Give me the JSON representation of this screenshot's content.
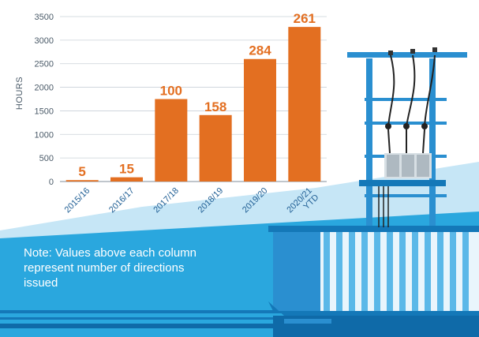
{
  "colors": {
    "bar": "#e36f21",
    "label": "#e36f21",
    "axis": "#9aa5ae",
    "grid": "#c9d1d8",
    "band_light": "#c6e6f6",
    "band_mid": "#2aa7de",
    "band_dark": "#1478b8",
    "pole": "#2a8fd0"
  },
  "note": "Note: Values above each column represent number of directions issued",
  "chart_data": {
    "type": "bar",
    "ylabel": "HOURS",
    "xlabel": "",
    "title": "",
    "ylim": [
      0,
      3500
    ],
    "yticks": [
      0,
      500,
      1000,
      1500,
      2000,
      2500,
      3000,
      3500
    ],
    "grid": true,
    "categories": [
      "2015/16",
      "2016/17",
      "2017/18",
      "2018/19",
      "2019/20",
      "2020/21\nYTD"
    ],
    "categories_display": [
      "2015/16",
      "2016/17",
      "201718",
      "2018/19",
      "2019/20",
      "2020/21 YTD"
    ],
    "values": [
      30,
      90,
      1750,
      1410,
      2600,
      3280
    ],
    "data_labels": [
      "5",
      "15",
      "100",
      "158",
      "284",
      "261"
    ]
  }
}
